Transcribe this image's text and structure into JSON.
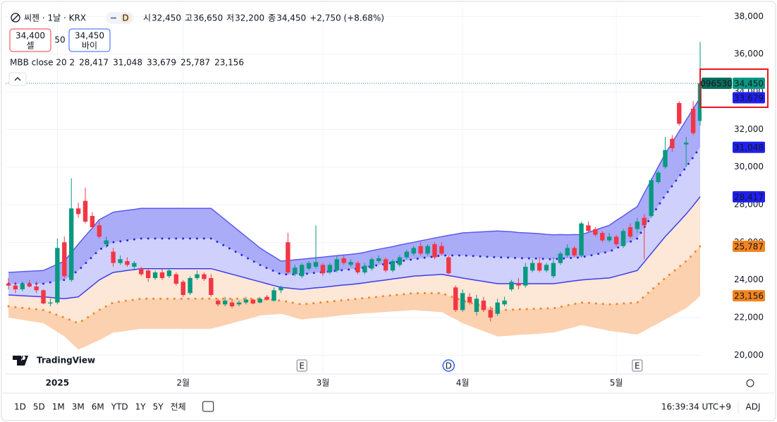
{
  "header": {
    "symbol": "씨젠 · 1날 · KRX",
    "badge": "D",
    "ohlc": [
      {
        "label": "시",
        "value": "32,450"
      },
      {
        "label": "고",
        "value": "36,650"
      },
      {
        "label": "저",
        "value": "32,200"
      },
      {
        "label": "종",
        "value": "34,450"
      }
    ],
    "change": "+2,750 (+8.68%)",
    "sell": {
      "price": "34,400",
      "label": "셀"
    },
    "spread": "50",
    "buy": {
      "price": "34,450",
      "label": "바이"
    }
  },
  "footer": {
    "logo": "TradingView",
    "periods": [
      "1D",
      "5D",
      "1M",
      "3M",
      "6M",
      "YTD",
      "1Y",
      "5Y",
      "전체"
    ],
    "time": "16:39:34 UTC+9",
    "adj": "ADJ"
  },
  "chart_data": {
    "type": "candlestick",
    "indicator_label": "MBB close 20 2",
    "symbol_code": "096530",
    "last_label": "34,450",
    "up_color": "#089981",
    "down_color": "#f23645",
    "grid": true,
    "ylim": [
      19000,
      38500
    ],
    "yticks": [
      {
        "value": 20000,
        "label": "20,000"
      },
      {
        "value": 22000,
        "label": "22,000"
      },
      {
        "value": 24000,
        "label": "24,000"
      },
      {
        "value": 26000,
        "label": "26,000"
      },
      {
        "value": 28000,
        "label": "28,000"
      },
      {
        "value": 30000,
        "label": "30,000"
      },
      {
        "value": 32000,
        "label": "32,000"
      },
      {
        "value": 34000,
        "label": "34,000"
      },
      {
        "value": 36000,
        "label": "36,000"
      },
      {
        "value": 38000,
        "label": "38,000"
      }
    ],
    "categories": [
      null,
      null,
      null,
      null,
      null,
      null,
      null,
      "2025",
      null,
      null,
      null,
      null,
      null,
      null,
      null,
      null,
      null,
      null,
      null,
      null,
      null,
      null,
      null,
      null,
      null,
      "2월",
      null,
      null,
      null,
      null,
      null,
      null,
      null,
      null,
      null,
      null,
      null,
      null,
      null,
      null,
      null,
      null,
      null,
      null,
      null,
      "3월",
      null,
      null,
      null,
      null,
      null,
      null,
      null,
      null,
      null,
      null,
      null,
      null,
      null,
      null,
      null,
      null,
      null,
      null,
      null,
      "4월",
      null,
      null,
      null,
      null,
      null,
      null,
      null,
      null,
      null,
      null,
      null,
      null,
      null,
      null,
      null,
      null,
      null,
      null,
      null,
      null,
      null,
      "5월",
      null,
      null,
      null,
      null,
      null,
      null,
      null,
      null,
      null,
      null,
      null,
      null
    ],
    "events": [
      null,
      null,
      null,
      null,
      null,
      null,
      null,
      null,
      null,
      null,
      null,
      null,
      null,
      null,
      null,
      null,
      null,
      null,
      null,
      null,
      null,
      null,
      null,
      null,
      null,
      null,
      null,
      null,
      null,
      null,
      null,
      null,
      null,
      null,
      null,
      null,
      null,
      null,
      null,
      null,
      null,
      null,
      "E",
      null,
      null,
      null,
      null,
      null,
      null,
      null,
      null,
      null,
      null,
      null,
      null,
      null,
      null,
      null,
      null,
      null,
      null,
      null,
      null,
      "D",
      null,
      null,
      null,
      null,
      null,
      null,
      null,
      null,
      null,
      null,
      null,
      null,
      null,
      null,
      null,
      null,
      null,
      null,
      null,
      null,
      null,
      null,
      null,
      null,
      null,
      null,
      "E",
      null,
      null,
      null,
      null,
      null,
      null,
      null,
      null,
      null
    ],
    "open": [
      23800,
      23700,
      23500,
      23800,
      23650,
      23450,
      22750,
      22800,
      26000,
      24000,
      27800,
      28200,
      27400,
      26900,
      25900,
      25500,
      24900,
      25000,
      24700,
      24600,
      24500,
      24100,
      24400,
      24200,
      24300,
      23900,
      23300,
      24100,
      24300,
      24100,
      22900,
      22700,
      22800,
      22700,
      22800,
      22950,
      22800,
      23100,
      22900,
      23450,
      26000,
      24300,
      24200,
      24600,
      24700,
      24800,
      24400,
      24500,
      25150,
      24800,
      24900,
      24400,
      24600,
      25000,
      25100,
      24500,
      24800,
      25200,
      25400,
      25800,
      25400,
      25900,
      25800,
      25200,
      23600,
      22400,
      23100,
      22300,
      22900,
      22400,
      22200,
      22700,
      23500,
      23800,
      23700,
      24500,
      24900,
      24500,
      24200,
      24900,
      25300,
      25700,
      25300,
      26900,
      26700,
      26500,
      26100,
      26300,
      25800,
      26800,
      26700,
      27300,
      27400,
      29200,
      30000,
      31500,
      33400,
      31200,
      33100,
      32450
    ],
    "high": [
      24100,
      23900,
      23900,
      24000,
      23900,
      23500,
      23000,
      26200,
      26300,
      29400,
      28100,
      28900,
      27600,
      27100,
      26300,
      25700,
      25300,
      25200,
      25000,
      24700,
      24600,
      24500,
      24600,
      24600,
      24400,
      24000,
      24200,
      24500,
      24400,
      24300,
      23000,
      23100,
      23000,
      22900,
      23100,
      23000,
      23100,
      23200,
      23600,
      23700,
      26500,
      24800,
      24900,
      25000,
      26900,
      24900,
      24900,
      25300,
      25300,
      25100,
      25000,
      24900,
      25200,
      25300,
      25200,
      25100,
      25300,
      25600,
      25800,
      26000,
      25900,
      26000,
      26000,
      25300,
      23700,
      23500,
      23300,
      23200,
      23100,
      22600,
      23000,
      23100,
      24000,
      24100,
      24900,
      25100,
      25200,
      24900,
      25200,
      25500,
      25900,
      25800,
      27100,
      27100,
      26800,
      26600,
      26500,
      26400,
      26700,
      27000,
      27300,
      27500,
      29400,
      29800,
      31600,
      31700,
      33500,
      31600,
      33500,
      36650
    ],
    "low": [
      23500,
      23300,
      23400,
      23600,
      23300,
      22700,
      22600,
      22700,
      24100,
      23900,
      27300,
      27000,
      26700,
      26200,
      25700,
      24700,
      24800,
      24700,
      24500,
      24200,
      23900,
      24000,
      24000,
      24100,
      23700,
      23100,
      23200,
      24000,
      23950,
      23100,
      22600,
      22600,
      22500,
      22600,
      22700,
      22700,
      22750,
      22900,
      22850,
      23300,
      24300,
      24200,
      24100,
      24500,
      24600,
      24200,
      24300,
      24400,
      24800,
      24700,
      24300,
      24300,
      24500,
      24900,
      24400,
      24400,
      24700,
      25100,
      25300,
      25300,
      25300,
      25100,
      25300,
      24300,
      22300,
      22300,
      22700,
      22100,
      22300,
      21800,
      22100,
      22600,
      23400,
      23500,
      23600,
      24400,
      24400,
      24400,
      24100,
      24800,
      25200,
      25200,
      25200,
      26500,
      26300,
      26000,
      26000,
      25800,
      25700,
      26200,
      26500,
      25100,
      27300,
      29100,
      29900,
      30800,
      32200,
      30000,
      31700,
      32200
    ],
    "close": [
      23700,
      23500,
      23800,
      23650,
      23450,
      22750,
      22800,
      25700,
      24200,
      27800,
      27500,
      27100,
      26800,
      26300,
      26100,
      24900,
      25100,
      24800,
      24900,
      24300,
      24100,
      24400,
      24100,
      24500,
      23800,
      23200,
      24100,
      24300,
      24050,
      23200,
      22700,
      22900,
      22600,
      22800,
      22950,
      22750,
      23000,
      22950,
      23450,
      23600,
      24400,
      24650,
      24800,
      24900,
      24950,
      24350,
      24800,
      25100,
      24900,
      24950,
      24400,
      24750,
      25100,
      25150,
      24500,
      25000,
      25200,
      25500,
      25700,
      25400,
      25800,
      25200,
      25400,
      24350,
      22400,
      23300,
      22800,
      23000,
      22400,
      22000,
      22800,
      22900,
      23900,
      23700,
      24700,
      24900,
      24500,
      24800,
      24900,
      25400,
      25700,
      25300,
      27000,
      26600,
      26400,
      26100,
      26300,
      25900,
      26600,
      26300,
      27100,
      26900,
      29300,
      29700,
      30900,
      31000,
      32300,
      31300,
      31800,
      34450
    ],
    "bands": [
      {
        "color": "#3c3cf0",
        "style": "solid",
        "fill": "#fde3cf",
        "last_label": "28,417",
        "values": [
          23200,
          23180,
          23160,
          23140,
          23120,
          23100,
          23070,
          23030,
          23000,
          23050,
          23100,
          23400,
          23700,
          24000,
          24200,
          24400,
          24450,
          24500,
          24550,
          24600,
          24600,
          24600,
          24600,
          24600,
          24600,
          24600,
          24600,
          24600,
          24600,
          24600,
          24500,
          24400,
          24300,
          24200,
          24100,
          24000,
          23900,
          23800,
          23700,
          23600,
          23570,
          23530,
          23500,
          23540,
          23580,
          23610,
          23650,
          23690,
          23730,
          23760,
          23800,
          23850,
          23900,
          23950,
          24000,
          24050,
          24100,
          24150,
          24200,
          24220,
          24250,
          24270,
          24300,
          24230,
          24170,
          24100,
          24040,
          23980,
          23920,
          23860,
          23800,
          23800,
          23800,
          23800,
          23800,
          23800,
          23800,
          23800,
          23800,
          23850,
          23900,
          23950,
          24000,
          24030,
          24050,
          24080,
          24100,
          24200,
          24300,
          24400,
          24500,
          24950,
          25400,
          25850,
          26300,
          26700,
          27100,
          27500,
          27950,
          28417
        ]
      },
      {
        "color": "#2727e6",
        "style": "dotted",
        "fill": "#c7c9fb",
        "last_label": "31,048",
        "values": [
          23800,
          23800,
          23800,
          23800,
          23800,
          23800,
          23870,
          23930,
          24000,
          24250,
          24500,
          24870,
          25230,
          25600,
          25800,
          26000,
          26050,
          26100,
          26150,
          26200,
          26200,
          26200,
          26200,
          26200,
          26200,
          26200,
          26200,
          26200,
          26200,
          26200,
          26000,
          25800,
          25600,
          25400,
          25200,
          25000,
          24800,
          24630,
          24470,
          24300,
          24300,
          24300,
          24300,
          24340,
          24380,
          24410,
          24450,
          24490,
          24530,
          24560,
          24600,
          24660,
          24730,
          24790,
          24850,
          24910,
          24980,
          25040,
          25100,
          25150,
          25200,
          25250,
          25300,
          25300,
          25300,
          25300,
          25280,
          25260,
          25240,
          25220,
          25200,
          25190,
          25180,
          25160,
          25150,
          25140,
          25130,
          25110,
          25100,
          25130,
          25150,
          25180,
          25200,
          25280,
          25350,
          25430,
          25500,
          25680,
          25850,
          26030,
          26200,
          26780,
          27350,
          27930,
          28500,
          29000,
          29500,
          30000,
          30520,
          31048
        ]
      },
      {
        "color": "#5a5af2",
        "style": "solid",
        "fill": "#9b9df6",
        "last_label": "33,679",
        "values": [
          24400,
          24420,
          24440,
          24460,
          24480,
          24500,
          24670,
          24830,
          25000,
          25450,
          25900,
          26340,
          26760,
          27200,
          27400,
          27600,
          27650,
          27700,
          27750,
          27800,
          27800,
          27800,
          27800,
          27800,
          27800,
          27800,
          27800,
          27800,
          27800,
          27800,
          27500,
          27200,
          26900,
          26600,
          26300,
          26000,
          25700,
          25460,
          25240,
          25000,
          25030,
          25070,
          25100,
          25140,
          25180,
          25210,
          25250,
          25290,
          25330,
          25360,
          25400,
          25470,
          25560,
          25630,
          25700,
          25770,
          25860,
          25930,
          26000,
          26080,
          26150,
          26230,
          26300,
          26370,
          26430,
          26500,
          26520,
          26540,
          26560,
          26580,
          26600,
          26580,
          26560,
          26520,
          26500,
          26480,
          26460,
          26420,
          26400,
          26410,
          26400,
          26410,
          26400,
          26530,
          26650,
          26780,
          26900,
          27160,
          27400,
          27660,
          27900,
          28610,
          29300,
          30010,
          30700,
          31300,
          31900,
          32500,
          33090,
          33679
        ]
      },
      {
        "color": "#f5841f",
        "style": "dotted",
        "fill": "#fcc9a2",
        "last_label": "25,787",
        "values": [
          22600,
          22560,
          22520,
          22480,
          22440,
          22400,
          22270,
          22130,
          22000,
          21850,
          21700,
          21930,
          22170,
          22400,
          22600,
          22800,
          22850,
          22900,
          22950,
          23000,
          23000,
          23000,
          23000,
          23000,
          23000,
          23000,
          23000,
          23000,
          23000,
          23000,
          23000,
          23000,
          23000,
          23000,
          23000,
          23000,
          23000,
          22970,
          22930,
          22900,
          22840,
          22760,
          22700,
          22740,
          22780,
          22810,
          22850,
          22890,
          22930,
          22960,
          23000,
          23040,
          23070,
          23110,
          23150,
          23190,
          23220,
          23260,
          23300,
          23290,
          23300,
          23290,
          23300,
          23160,
          23040,
          22900,
          22800,
          22700,
          22600,
          22500,
          22400,
          22410,
          22420,
          22440,
          22450,
          22460,
          22470,
          22490,
          22500,
          22570,
          22650,
          22720,
          22800,
          22780,
          22750,
          22730,
          22700,
          22720,
          22750,
          22770,
          22800,
          23120,
          23450,
          23770,
          24100,
          24400,
          24700,
          25000,
          25380,
          25787
        ]
      },
      {
        "color": "#f5841f",
        "style": "none",
        "last_label": "23,156",
        "values": [
          22000,
          21940,
          21880,
          21820,
          21760,
          21700,
          21470,
          21230,
          21000,
          20650,
          20300,
          20460,
          20640,
          20800,
          21000,
          21200,
          21250,
          21300,
          21350,
          21400,
          21400,
          21400,
          21400,
          21400,
          21400,
          21400,
          21400,
          21400,
          21400,
          21400,
          21500,
          21600,
          21700,
          21800,
          21900,
          22000,
          22100,
          22140,
          22160,
          22200,
          22110,
          21990,
          21900,
          21940,
          21980,
          22010,
          22050,
          22090,
          22130,
          22160,
          22200,
          22230,
          22240,
          22270,
          22300,
          22330,
          22340,
          22370,
          22400,
          22360,
          22350,
          22310,
          22300,
          22090,
          21910,
          21700,
          21560,
          21420,
          21280,
          21140,
          21000,
          21020,
          21040,
          21080,
          21100,
          21120,
          21140,
          21180,
          21200,
          21290,
          21400,
          21490,
          21600,
          21530,
          21450,
          21380,
          21300,
          21240,
          21200,
          21140,
          21100,
          21290,
          21500,
          21690,
          21900,
          22100,
          22300,
          22500,
          22810,
          23156
        ]
      }
    ]
  }
}
